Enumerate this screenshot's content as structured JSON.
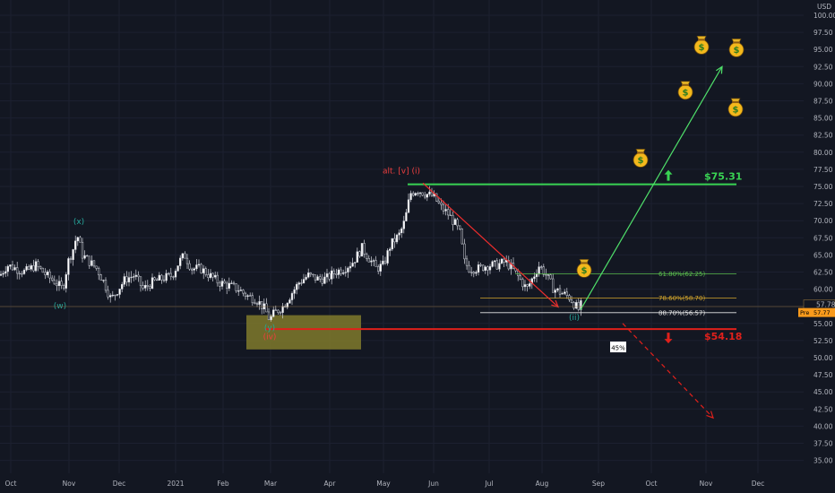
{
  "chart_data": {
    "type": "candlestick",
    "currency": "USD",
    "ylim": [
      32.5,
      100
    ],
    "x_ticks": [
      "Oct",
      "Nov",
      "Dec",
      "2021",
      "Feb",
      "Mar",
      "Apr",
      "May",
      "Jun",
      "Jul",
      "Aug",
      "Sep",
      "Oct",
      "Nov",
      "Dec"
    ],
    "y_ticks": [
      35.0,
      37.5,
      40.0,
      42.5,
      45.0,
      47.5,
      50.0,
      52.5,
      55.0,
      57.5,
      60.0,
      62.5,
      65.0,
      67.5,
      70.0,
      72.5,
      75.0,
      77.5,
      80.0,
      82.5,
      85.0,
      87.5,
      90.0,
      92.5,
      95.0,
      97.5,
      100.0
    ],
    "y_tick_labels": [
      "35.00",
      "37.50",
      "40.00",
      "42.50",
      "45.00",
      "47.50",
      "50.00",
      "52.50",
      "55.00",
      "57.50",
      "60.00",
      "62.50",
      "65.00",
      "67.50",
      "70.00",
      "72.50",
      "75.00",
      "77.50",
      "80.00",
      "82.50",
      "85.00",
      "87.50",
      "90.00",
      "92.50",
      "95.00",
      "97.50",
      "100.00"
    ],
    "last_price": {
      "value": 57.78,
      "label": "57.78"
    },
    "pre_price": {
      "tag": "Pre",
      "value": 57.77,
      "label": "57.77"
    },
    "price_path": [
      [
        0,
        62.0
      ],
      [
        8,
        63.5
      ],
      [
        18,
        63.0
      ],
      [
        28,
        62.5
      ],
      [
        40,
        63.5
      ],
      [
        52,
        62.0
      ],
      [
        62,
        61.0
      ],
      [
        70,
        60.0
      ],
      [
        76,
        64.0
      ],
      [
        82,
        66.0
      ],
      [
        86,
        68.0
      ],
      [
        92,
        65.0
      ],
      [
        100,
        64.0
      ],
      [
        108,
        63.0
      ],
      [
        116,
        61.0
      ],
      [
        124,
        58.5
      ],
      [
        132,
        60.0
      ],
      [
        140,
        61.5
      ],
      [
        150,
        62.0
      ],
      [
        160,
        60.0
      ],
      [
        170,
        61.0
      ],
      [
        180,
        61.5
      ],
      [
        192,
        62.0
      ],
      [
        200,
        64.0
      ],
      [
        206,
        65.0
      ],
      [
        214,
        63.0
      ],
      [
        224,
        63.0
      ],
      [
        234,
        62.0
      ],
      [
        244,
        61.0
      ],
      [
        256,
        60.5
      ],
      [
        266,
        60.0
      ],
      [
        276,
        59.0
      ],
      [
        286,
        58.5
      ],
      [
        296,
        57.0
      ],
      [
        301,
        55.5
      ],
      [
        306,
        56.5
      ],
      [
        316,
        57.5
      ],
      [
        326,
        59.5
      ],
      [
        334,
        61.0
      ],
      [
        344,
        62.0
      ],
      [
        354,
        61.5
      ],
      [
        364,
        61.5
      ],
      [
        374,
        62.5
      ],
      [
        384,
        63.0
      ],
      [
        394,
        64.0
      ],
      [
        404,
        66.0
      ],
      [
        412,
        64.5
      ],
      [
        420,
        63.0
      ],
      [
        428,
        63.5
      ],
      [
        436,
        66.5
      ],
      [
        446,
        68.0
      ],
      [
        452,
        70.0
      ],
      [
        458,
        74.0
      ],
      [
        466,
        74.5
      ],
      [
        474,
        74.0
      ],
      [
        484,
        73.5
      ],
      [
        492,
        72.0
      ],
      [
        500,
        71.0
      ],
      [
        508,
        69.5
      ],
      [
        514,
        68.0
      ],
      [
        518,
        64.0
      ],
      [
        524,
        63.0
      ],
      [
        534,
        63.0
      ],
      [
        544,
        63.5
      ],
      [
        554,
        63.5
      ],
      [
        564,
        64.0
      ],
      [
        572,
        63.0
      ],
      [
        580,
        61.5
      ],
      [
        588,
        60.0
      ],
      [
        596,
        62.0
      ],
      [
        602,
        63.5
      ],
      [
        610,
        62.0
      ],
      [
        618,
        60.0
      ],
      [
        626,
        59.5
      ],
      [
        636,
        58.8
      ],
      [
        642,
        57.6
      ],
      [
        646,
        57.0
      ],
      [
        649,
        57.8
      ]
    ],
    "wave_labels": [
      {
        "text": "(x)",
        "x": 88,
        "price": 69.5,
        "color": "#26a69a"
      },
      {
        "text": "(w)",
        "x": 67,
        "price": 57.2,
        "color": "#26a69a"
      },
      {
        "text": "(y)",
        "x": 301,
        "price": 54.0,
        "color": "#26a69a"
      },
      {
        "text": "(iv)",
        "x": 301,
        "price": 52.7,
        "color": "#ef3f3f"
      },
      {
        "text": "alt. [v] (i)",
        "x": 448,
        "price": 76.9,
        "color": "#ef3f3f"
      },
      {
        "text": "(ii)",
        "x": 641,
        "price": 55.5,
        "color": "#26a69a"
      }
    ],
    "fib_levels": [
      {
        "label": "61.80%(62.25)",
        "price": 62.25,
        "x_start": 575,
        "x_end": 822,
        "color": "#5cbf4f"
      },
      {
        "label": "78.60%(58.70)",
        "price": 58.7,
        "x_start": 536,
        "x_end": 822,
        "color": "#d4a72c"
      },
      {
        "label": "88.70%(56.57)",
        "price": 56.57,
        "x_start": 536,
        "x_end": 822,
        "color": "#e8e8e8"
      }
    ],
    "targets": [
      {
        "label": "$75.31",
        "price": 75.31,
        "x_start": 455,
        "x_end": 822,
        "color": "#39d353",
        "direction": "up"
      },
      {
        "label": "$54.18",
        "price": 54.18,
        "x_start": 296,
        "x_end": 822,
        "color": "#e0201b",
        "direction": "down"
      }
    ],
    "projection_up": {
      "from": [
        648,
        57.0
      ],
      "to": [
        806,
        92.5
      ],
      "color": "#4fe06a"
    },
    "decline_arrow": {
      "from": [
        472,
        75.5
      ],
      "to": [
        623,
        57.4
      ],
      "color": "#ef2d2d"
    },
    "projection_down": {
      "from": [
        695,
        55.0
      ],
      "to": [
        796,
        41.2
      ],
      "color": "#e0201b"
    },
    "support_zone": {
      "x_start": 275,
      "x_end": 403,
      "price_top": 56.2,
      "price_bottom": 51.2,
      "color": "#807a2c"
    },
    "percent_badge": {
      "label": "45%",
      "x": 690,
      "price": 51.3
    },
    "money_bags": [
      {
        "x": 715,
        "price": 79.0
      },
      {
        "x": 652,
        "price": 62.9
      },
      {
        "x": 765,
        "price": 88.9
      },
      {
        "x": 783,
        "price": 95.5
      },
      {
        "x": 822,
        "price": 95.1
      },
      {
        "x": 821,
        "price": 86.4
      }
    ]
  }
}
